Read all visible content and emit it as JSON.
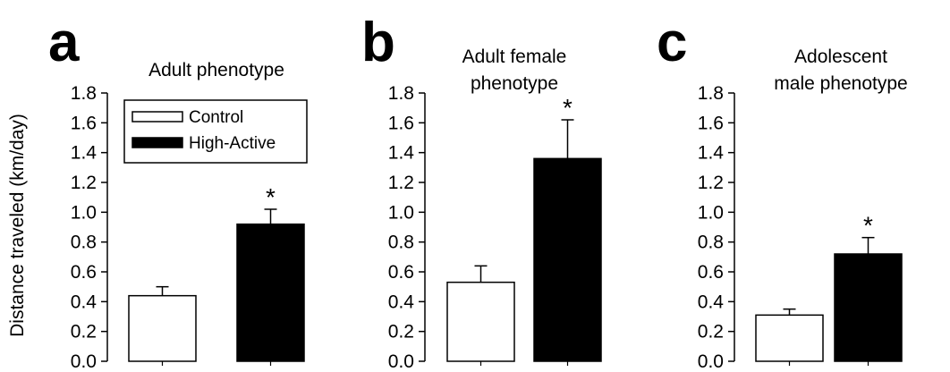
{
  "figure": {
    "ylabel": "Distance traveled (km/day)",
    "legend": {
      "placement": "top-left of panel a",
      "entries": [
        {
          "label": "Control",
          "color": "#ffffff"
        },
        {
          "label": "High-Active",
          "color": "#000000"
        }
      ]
    }
  },
  "chart_data": [
    {
      "type": "bar",
      "panel_letter": "a",
      "title_lines": [
        "Adult phenotype"
      ],
      "categories": [
        "Control",
        "High-Active"
      ],
      "values": [
        0.44,
        0.92
      ],
      "errors": [
        0.06,
        0.1
      ],
      "bar_colors": [
        "#ffffff",
        "#000000"
      ],
      "significance": [
        "",
        "*"
      ],
      "ylim": [
        0.0,
        1.8
      ],
      "yticks": [
        "0.0",
        "0.2",
        "0.4",
        "0.6",
        "0.8",
        "1.0",
        "1.2",
        "1.4",
        "1.6",
        "1.8"
      ],
      "ylabel": "Distance traveled (km/day)",
      "grid": false
    },
    {
      "type": "bar",
      "panel_letter": "b",
      "title_lines": [
        "Adult female",
        "phenotype"
      ],
      "categories": [
        "Control",
        "High-Active"
      ],
      "values": [
        0.53,
        1.36
      ],
      "errors": [
        0.11,
        0.26
      ],
      "bar_colors": [
        "#ffffff",
        "#000000"
      ],
      "significance": [
        "",
        "*"
      ],
      "ylim": [
        0.0,
        1.8
      ],
      "yticks": [
        "0.0",
        "0.2",
        "0.4",
        "0.6",
        "0.8",
        "1.0",
        "1.2",
        "1.4",
        "1.6",
        "1.8"
      ],
      "grid": false
    },
    {
      "type": "bar",
      "panel_letter": "c",
      "title_lines": [
        "Adolescent",
        "male phenotype"
      ],
      "categories": [
        "Control",
        "High-Active"
      ],
      "values": [
        0.31,
        0.72
      ],
      "errors": [
        0.04,
        0.11
      ],
      "bar_colors": [
        "#ffffff",
        "#000000"
      ],
      "significance": [
        "",
        "*"
      ],
      "ylim": [
        0.0,
        1.8
      ],
      "yticks": [
        "0.0",
        "0.2",
        "0.4",
        "0.6",
        "0.8",
        "1.0",
        "1.2",
        "1.4",
        "1.6",
        "1.8"
      ],
      "grid": false
    }
  ]
}
